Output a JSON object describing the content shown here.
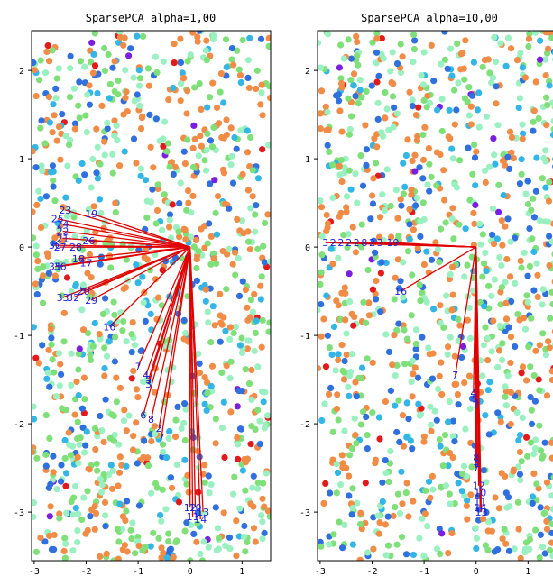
{
  "chart_data": [
    {
      "type": "scatter",
      "title": "SparsePCA alpha=1,00",
      "xlabel": "",
      "ylabel": "",
      "xlim": [
        -3.05,
        1.55
      ],
      "ylim": [
        -3.55,
        2.45
      ],
      "xticks": [
        "-3",
        "-2",
        "-1",
        "0",
        "1"
      ],
      "yticks": [
        "2",
        "1",
        "0",
        "-1",
        "-2",
        "-3"
      ],
      "colors": {
        "point_palette": [
          "#f08c46",
          "#33b5e5",
          "#7fe07a",
          "#9af0c0",
          "#2f6fde",
          "#e31a1c",
          "#7a1fe0"
        ],
        "vector": "#e00000",
        "label": "#1f1fd6"
      },
      "vectors": [
        {
          "label": "23",
          "x": -2.4,
          "y": 0.42
        },
        {
          "label": "19",
          "x": -1.9,
          "y": 0.38
        },
        {
          "label": "25",
          "x": -2.55,
          "y": 0.32
        },
        {
          "label": "24",
          "x": -2.45,
          "y": 0.26
        },
        {
          "label": "22",
          "x": -2.45,
          "y": 0.18
        },
        {
          "label": "21",
          "x": -2.45,
          "y": 0.1
        },
        {
          "label": "26",
          "x": -1.95,
          "y": 0.07
        },
        {
          "label": "30",
          "x": -2.6,
          "y": 0.02
        },
        {
          "label": "27",
          "x": -2.5,
          "y": 0.0
        },
        {
          "label": "28",
          "x": -2.2,
          "y": 0.0
        },
        {
          "label": "18",
          "x": -2.15,
          "y": -0.13
        },
        {
          "label": "17",
          "x": -2.0,
          "y": -0.18
        },
        {
          "label": "35",
          "x": -2.6,
          "y": -0.22
        },
        {
          "label": "36",
          "x": -2.5,
          "y": -0.22
        },
        {
          "label": "20",
          "x": -2.05,
          "y": -0.5
        },
        {
          "label": "33",
          "x": -2.45,
          "y": -0.57
        },
        {
          "label": "32",
          "x": -2.25,
          "y": -0.57
        },
        {
          "label": "29",
          "x": -1.9,
          "y": -0.6
        },
        {
          "label": "16",
          "x": -1.55,
          "y": -0.9
        },
        {
          "label": "7",
          "x": -1.0,
          "y": -1.35
        },
        {
          "label": "4",
          "x": -0.85,
          "y": -1.45
        },
        {
          "label": "5",
          "x": -0.8,
          "y": -1.5
        },
        {
          "label": "3",
          "x": -0.8,
          "y": -1.55
        },
        {
          "label": "6",
          "x": -0.9,
          "y": -1.9
        },
        {
          "label": "8",
          "x": -0.75,
          "y": -1.95
        },
        {
          "label": "2",
          "x": -0.6,
          "y": -2.05
        },
        {
          "label": "7",
          "x": -0.55,
          "y": -2.15
        },
        {
          "label": "12",
          "x": 0.0,
          "y": -2.95
        },
        {
          "label": "10",
          "x": 0.1,
          "y": -2.95
        },
        {
          "label": "13",
          "x": 0.25,
          "y": -3.0
        },
        {
          "label": "11",
          "x": 0.05,
          "y": -3.05
        },
        {
          "label": "14",
          "x": 0.2,
          "y": -3.08
        }
      ]
    },
    {
      "type": "scatter",
      "title": "SparsePCA alpha=10,00",
      "xlabel": "",
      "ylabel": "",
      "xlim": [
        -3.05,
        1.55
      ],
      "ylim": [
        -3.55,
        2.45
      ],
      "xticks": [
        "-3",
        "-2",
        "-1",
        "0",
        "1"
      ],
      "yticks": [
        "2",
        "1",
        "0",
        "-1",
        "-2",
        "-3"
      ],
      "colors": {
        "point_palette": [
          "#f08c46",
          "#33b5e5",
          "#7fe07a",
          "#9af0c0",
          "#2f6fde",
          "#e31a1c",
          "#7a1fe0"
        ],
        "vector": "#e00000",
        "label": "#1f1fd6"
      },
      "vectors": [
        {
          "label": "3",
          "x": -2.9,
          "y": 0.05
        },
        {
          "label": "2",
          "x": -2.75,
          "y": 0.05
        },
        {
          "label": "2",
          "x": -2.6,
          "y": 0.05
        },
        {
          "label": "2",
          "x": -2.45,
          "y": 0.05
        },
        {
          "label": "2",
          "x": -2.3,
          "y": 0.05
        },
        {
          "label": "8",
          "x": -2.15,
          "y": 0.05
        },
        {
          "label": "2",
          "x": -2.0,
          "y": 0.05
        },
        {
          "label": "3",
          "x": -1.85,
          "y": 0.05
        },
        {
          "label": "19",
          "x": -1.6,
          "y": 0.05
        },
        {
          "label": "16",
          "x": -1.45,
          "y": -0.5
        },
        {
          "label": "7",
          "x": -0.4,
          "y": -1.45
        },
        {
          "label": "4",
          "x": -0.05,
          "y": -1.65
        },
        {
          "label": "5",
          "x": -0.02,
          "y": -1.72
        },
        {
          "label": "3",
          "x": 0.0,
          "y": -1.78
        },
        {
          "label": "8",
          "x": 0.0,
          "y": -2.38
        },
        {
          "label": "2",
          "x": 0.02,
          "y": -2.45
        },
        {
          "label": "7",
          "x": 0.0,
          "y": -2.5
        },
        {
          "label": "12",
          "x": 0.05,
          "y": -2.7
        },
        {
          "label": "10",
          "x": 0.08,
          "y": -2.78
        },
        {
          "label": "11",
          "x": 0.08,
          "y": -2.88
        },
        {
          "label": "14",
          "x": 0.08,
          "y": -2.95
        },
        {
          "label": "13",
          "x": 0.1,
          "y": -3.0
        }
      ]
    }
  ]
}
